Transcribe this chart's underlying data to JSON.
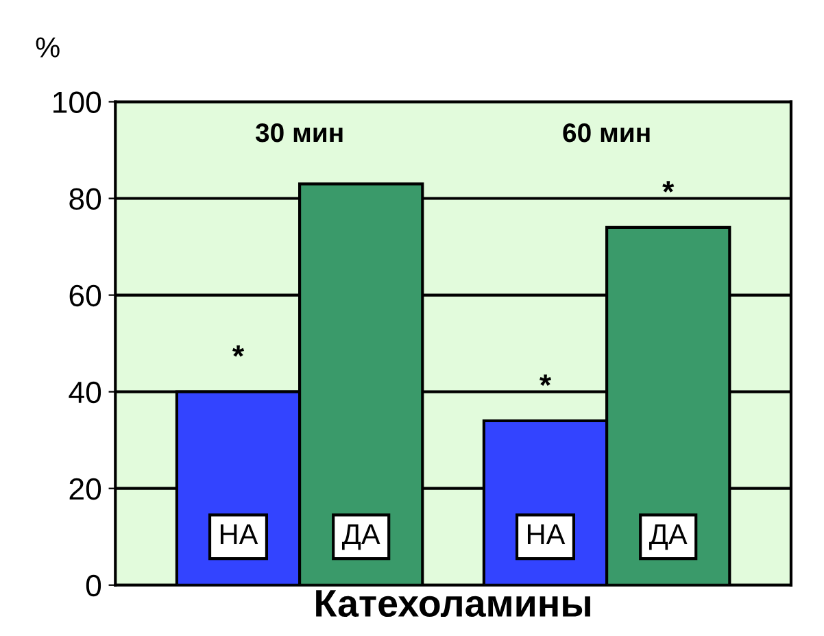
{
  "chart_data": {
    "type": "bar",
    "ylabel": "%",
    "xlabel": "Катехоламины",
    "categories": [
      "30 мин",
      "60 мин"
    ],
    "series": [
      {
        "name": "НА",
        "color": "#3344ff",
        "values": [
          40,
          34
        ],
        "value_labels": [
          "*",
          "*"
        ]
      },
      {
        "name": "ДА",
        "color": "#3a9a6a",
        "values": [
          83,
          74
        ],
        "value_labels": [
          null,
          "*"
        ]
      }
    ],
    "ylim": [
      0,
      100
    ],
    "yticks": [
      0,
      20,
      40,
      60,
      80,
      100
    ],
    "grid": "y",
    "legend": false
  }
}
